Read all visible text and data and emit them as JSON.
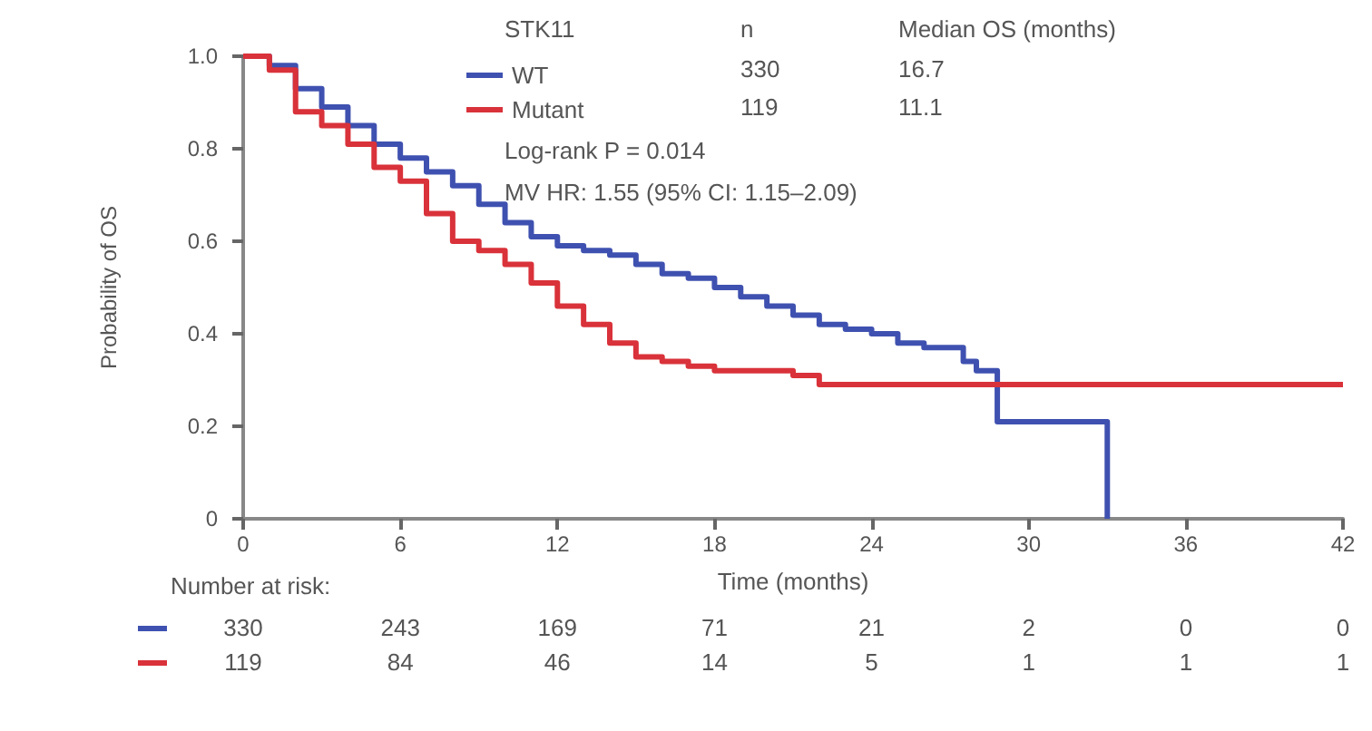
{
  "chart_data": {
    "type": "step",
    "xlabel": "Time (months)",
    "ylabel": "Probability of OS",
    "legend_title": "STK11",
    "legend": "top",
    "grid": false,
    "xlim": [
      0,
      42
    ],
    "xticks": [
      0,
      6,
      12,
      18,
      24,
      30,
      36,
      42
    ],
    "ylim": [
      0,
      1
    ],
    "yticks": [
      0,
      0.2,
      0.4,
      0.6,
      0.8,
      {
        "value": 1,
        "label": "1.0"
      }
    ],
    "series": [
      {
        "name": "WT",
        "color": "#3f51b0",
        "x": [
          0,
          1,
          2,
          3,
          4,
          5,
          6,
          7,
          8,
          9,
          10,
          11,
          12,
          13,
          14,
          15,
          16,
          17,
          18,
          19,
          20,
          21,
          22,
          23,
          24,
          25,
          26,
          27,
          27.5,
          28,
          28.8,
          33
        ],
        "values": [
          1.0,
          0.98,
          0.93,
          0.89,
          0.85,
          0.81,
          0.78,
          0.75,
          0.72,
          0.68,
          0.64,
          0.61,
          0.59,
          0.58,
          0.57,
          0.55,
          0.53,
          0.52,
          0.5,
          0.48,
          0.46,
          0.44,
          0.42,
          0.41,
          0.4,
          0.38,
          0.37,
          0.37,
          0.34,
          0.32,
          0.21,
          0
        ]
      },
      {
        "name": "Mutant",
        "color": "#d9323a",
        "x": [
          0,
          1,
          2,
          3,
          4,
          5,
          6,
          7,
          8,
          9,
          10,
          11,
          12,
          13,
          14,
          15,
          16,
          17,
          18,
          20,
          21,
          22,
          42
        ],
        "values": [
          1.0,
          0.97,
          0.88,
          0.85,
          0.81,
          0.76,
          0.73,
          0.66,
          0.6,
          0.58,
          0.55,
          0.51,
          0.46,
          0.42,
          0.38,
          0.35,
          0.34,
          0.33,
          0.32,
          0.32,
          0.31,
          0.29,
          0.29
        ]
      }
    ],
    "annotations": [
      "n",
      "Median OS (months)",
      "330",
      "16.7",
      "119",
      "11.1",
      "Log-rank P = 0.014",
      "MV HR: 1.55 (95% CI: 1.15–2.09)",
      "Number at risk:",
      "330",
      "243",
      "169",
      "71",
      "21",
      "2",
      "0",
      "0",
      "119",
      "84",
      "46",
      "14",
      "5",
      "1",
      "1",
      "1"
    ]
  }
}
